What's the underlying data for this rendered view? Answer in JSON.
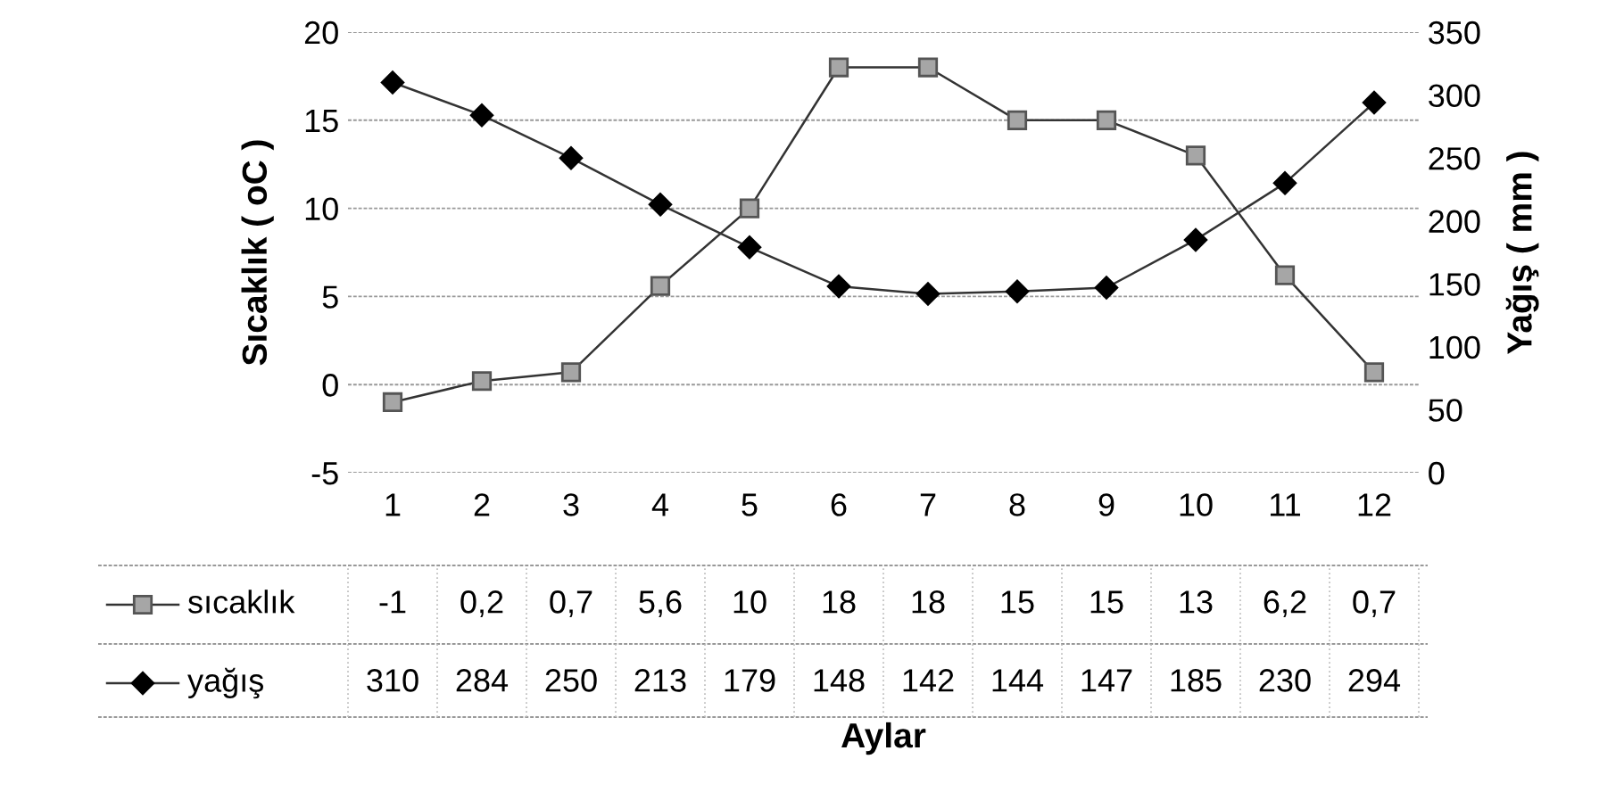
{
  "chart_data": {
    "type": "line",
    "annotations": [
      "Aylar"
    ],
    "ylabel": "Sıcaklık ( oC )",
    "y2label": "Yağış ( mm )",
    "categories": [
      "1",
      "2",
      "3",
      "4",
      "5",
      "6",
      "7",
      "8",
      "9",
      "10",
      "11",
      "12"
    ],
    "series": [
      {
        "name": "sıcaklık",
        "color": "#a6a6a6",
        "marker": "square",
        "values": [
          -1,
          0.2,
          0.7,
          5.6,
          10,
          18,
          18,
          15,
          15,
          13,
          6.2,
          0.7
        ],
        "value_labels": [
          "-1",
          "0,2",
          "0,7",
          "5,6",
          "10",
          "18",
          "18",
          "15",
          "15",
          "13",
          "6,2",
          "0,7"
        ]
      },
      {
        "name": "yağış",
        "color": "#000000",
        "marker": "diamond",
        "axis": "y2",
        "values": [
          310,
          284,
          250,
          213,
          179,
          148,
          142,
          144,
          147,
          185,
          230,
          294
        ],
        "value_labels": [
          "310",
          "284",
          "250",
          "213",
          "179",
          "148",
          "142",
          "144",
          "147",
          "185",
          "230",
          "294"
        ]
      }
    ],
    "ylim": [
      -5,
      20
    ],
    "yticks": [
      -5,
      0,
      5,
      10,
      15,
      20
    ],
    "y2lim": [
      0,
      350
    ],
    "y2ticks": [
      0,
      50,
      100,
      150,
      200,
      250,
      300,
      350
    ],
    "grid": "y",
    "line_style": "solid",
    "legend": "bottom"
  }
}
